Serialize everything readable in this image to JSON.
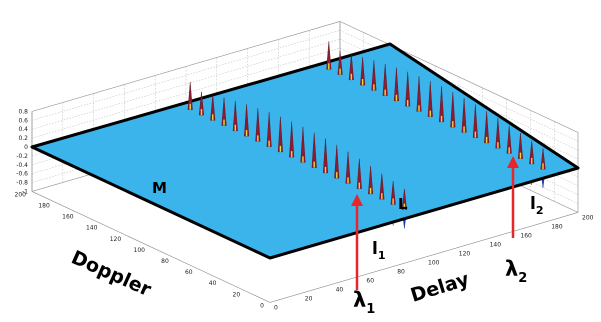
{
  "chart_data": {
    "type": "surface",
    "xlabel": "Delay",
    "ylabel": "Doppler",
    "x_ticks": [
      "0",
      "20",
      "40",
      "60",
      "80",
      "100",
      "120",
      "140",
      "160",
      "180",
      "200"
    ],
    "y_ticks": [
      "0",
      "20",
      "40",
      "60",
      "80",
      "100",
      "120",
      "140",
      "160",
      "180",
      "200"
    ],
    "z_ticks": [
      "-1",
      "-0.8",
      "-0.6",
      "-0.4",
      "-0.2",
      "0",
      "0.2",
      "0.4",
      "0.6",
      "0.8"
    ],
    "xlim": [
      0,
      200
    ],
    "ylim": [
      0,
      200
    ],
    "zlim": [
      -1,
      0.8
    ],
    "grid": true,
    "plane_color": "#3bb4ec",
    "ridges": [
      {
        "x": 95,
        "y_start": 10,
        "y_end": 190,
        "spikes": 20,
        "max_amplitude": 0.8
      },
      {
        "x": 185,
        "y_start": 10,
        "y_end": 190,
        "spikes": 20,
        "max_amplitude": 0.8
      }
    ],
    "annotations": {
      "M": "M",
      "L": "L",
      "l1_base": "l",
      "l1_sub": "1",
      "l2_base": "l",
      "l2_sub": "2",
      "lambda1_base": "λ",
      "lambda1_sub": "1",
      "lambda2_base": "λ",
      "lambda2_sub": "2"
    },
    "arrow_color": "#e8262a"
  }
}
